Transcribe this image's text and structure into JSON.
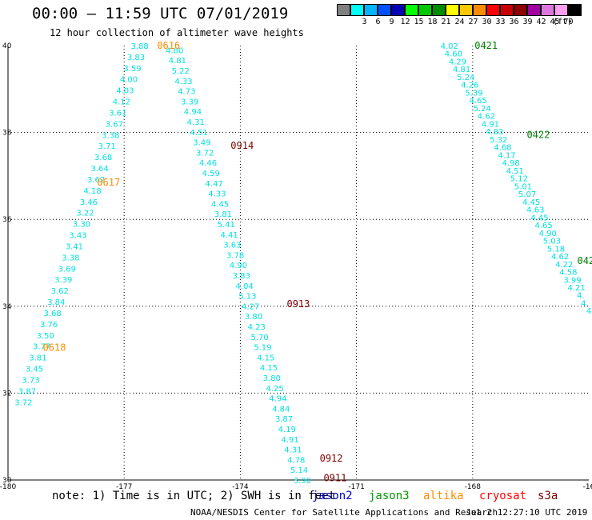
{
  "header": {
    "title": "00:00 – 11:59 UTC 07/01/2019",
    "subtitle": "12 hour collection of altimeter wave heights"
  },
  "colorbar": {
    "unit": "(ft)",
    "swatches": [
      {
        "color": "#808080",
        "label": ""
      },
      {
        "color": "#00ffff",
        "label": "3"
      },
      {
        "color": "#00b4ff",
        "label": "6"
      },
      {
        "color": "#0050ff",
        "label": "9"
      },
      {
        "color": "#0000b4",
        "label": "12"
      },
      {
        "color": "#00ff00",
        "label": "15"
      },
      {
        "color": "#00c800",
        "label": "18"
      },
      {
        "color": "#008c00",
        "label": "21"
      },
      {
        "color": "#ffff00",
        "label": "24"
      },
      {
        "color": "#ffc800",
        "label": "27"
      },
      {
        "color": "#ff8c00",
        "label": "30"
      },
      {
        "color": "#ff0000",
        "label": "33"
      },
      {
        "color": "#c80000",
        "label": "36"
      },
      {
        "color": "#8c0000",
        "label": "39"
      },
      {
        "color": "#a000a0",
        "label": "42"
      },
      {
        "color": "#dc78dc",
        "label": "45"
      },
      {
        "color": "#ff9ef0",
        "label": "70"
      },
      {
        "color": "#000000",
        "label": ""
      }
    ]
  },
  "axes": {
    "lon": [
      {
        "v": -180,
        "label": "-180"
      },
      {
        "v": -177,
        "label": "-177"
      },
      {
        "v": -174,
        "label": "-174"
      },
      {
        "v": -171,
        "label": "-171"
      },
      {
        "v": -168,
        "label": "-168"
      },
      {
        "v": -165,
        "label": "-16"
      }
    ],
    "lat": [
      {
        "v": 30,
        "label": "30"
      },
      {
        "v": 32,
        "label": "32"
      },
      {
        "v": 34,
        "label": "34"
      },
      {
        "v": 36,
        "label": "36"
      },
      {
        "v": 38,
        "label": "38"
      },
      {
        "v": 40,
        "label": "40"
      }
    ]
  },
  "legend": {
    "note": "note: 1) Time is in UTC; 2) SWH is in feet",
    "satellites": [
      {
        "name": "jason2",
        "color": "#0000cc"
      },
      {
        "name": "jason3",
        "color": "#009900"
      },
      {
        "name": "altika",
        "color": "#ff8c00"
      },
      {
        "name": "cryosat",
        "color": "#ff0000"
      },
      {
        "name": "s3a",
        "color": "#800000"
      }
    ]
  },
  "footer": {
    "credit": "NOAA/NESDIS Center for Satellite Applications and Research",
    "date": "Jul  2 12:27:10 UTC 2019"
  },
  "tracks": [
    {
      "satellite": "altika",
      "color": "#00e0e0",
      "start": [
        -176.6,
        40.0
      ],
      "end": [
        -179.6,
        31.8
      ],
      "values": [
        "3.88",
        "3.83",
        "3.59",
        "4.00",
        "4.03",
        "4.12",
        "3.61",
        "3.67",
        "3.38",
        "3.71",
        "3.68",
        "3.64",
        "3.62",
        "4.18",
        "3.46",
        "3.22",
        "3.30",
        "3.43",
        "3.41",
        "3.38",
        "3.69",
        "3.39",
        "3.62",
        "3.84",
        "3.68",
        "3.76",
        "3.50",
        "3.77",
        "3.81",
        "3.45",
        "3.73",
        "3.87",
        "3.72"
      ]
    },
    {
      "satellite": "s3a",
      "color": "#00e0e0",
      "start": [
        -175.7,
        39.9
      ],
      "end": [
        -172.4,
        30.0
      ],
      "values": [
        "4.80",
        "4.81",
        "5.22",
        "4.33",
        "4.73",
        "3.39",
        "4.94",
        "4.31",
        "4.51",
        "3.49",
        "3.72",
        "4.46",
        "4.59",
        "4.47",
        "4.33",
        "4.45",
        "3.81",
        "5.41",
        "4.41",
        "3.63",
        "3.78",
        "4.90",
        "3.83",
        "4.04",
        "5.13",
        "4.27",
        "3.80",
        "4.23",
        "5.70",
        "5.19",
        "4.15",
        "4.15",
        "3.80",
        "4.25",
        "4.94",
        "4.84",
        "3.87",
        "4.19",
        "4.91",
        "4.31",
        "4.78",
        "5.14",
        "3.90"
      ]
    },
    {
      "satellite": "jason3",
      "color": "#00e0e0",
      "start": [
        -168.6,
        40.0
      ],
      "end": [
        -165.0,
        33.9
      ],
      "values": [
        "4.02",
        "4.60",
        "4.29",
        "4.81",
        "5.24",
        "4.26",
        "5.39",
        "4.65",
        "5.24",
        "4.62",
        "4.91",
        "4.83",
        "5.32",
        "4.68",
        "4.17",
        "4.98",
        "4.51",
        "5.12",
        "5.01",
        "5.07",
        "4.45",
        "4.63",
        "4.45",
        "4.65",
        "4.90",
        "5.03",
        "5.18",
        "4.62",
        "4.22",
        "4.58",
        "3.99",
        "4.21",
        "4.",
        "4.",
        "4"
      ]
    }
  ],
  "time_labels": [
    {
      "text": "0616",
      "color": "#ff8c00",
      "lon": -176.15,
      "lat": 40.0
    },
    {
      "text": "0617",
      "color": "#ff8c00",
      "lon": -177.7,
      "lat": 36.85
    },
    {
      "text": "0618",
      "color": "#ff8c00",
      "lon": -179.1,
      "lat": 33.05
    },
    {
      "text": "0914",
      "color": "#800000",
      "lon": -174.25,
      "lat": 37.7
    },
    {
      "text": "0913",
      "color": "#800000",
      "lon": -172.8,
      "lat": 34.05
    },
    {
      "text": "0912",
      "color": "#800000",
      "lon": -171.95,
      "lat": 30.5
    },
    {
      "text": "0911",
      "color": "#800000",
      "lon": -171.85,
      "lat": 30.05
    },
    {
      "text": "0421",
      "color": "#008000",
      "lon": -167.95,
      "lat": 40.0
    },
    {
      "text": "0422",
      "color": "#008000",
      "lon": -166.6,
      "lat": 37.95
    },
    {
      "text": "042",
      "color": "#008000",
      "lon": -165.3,
      "lat": 35.05
    }
  ]
}
